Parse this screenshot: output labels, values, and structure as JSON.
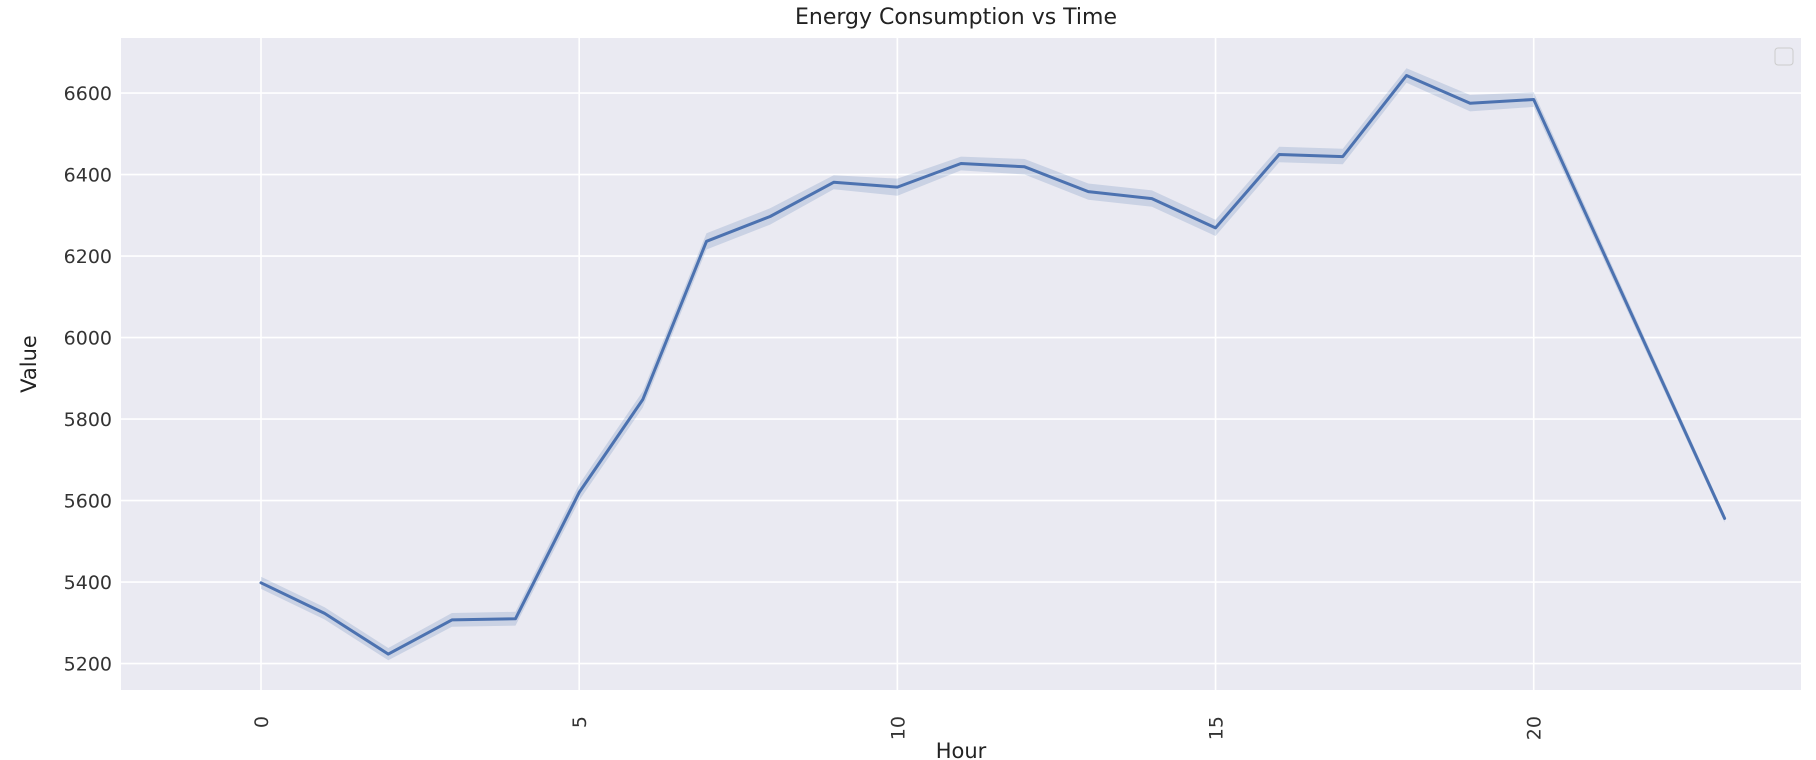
{
  "chart_data": {
    "type": "line",
    "title": "Energy Consumption vs Time",
    "xlabel": "Hour",
    "ylabel": "Value",
    "xlim": [
      -2.2,
      24.2
    ],
    "ylim": [
      5135,
      6735
    ],
    "xticks": [
      0,
      5,
      10,
      15,
      20
    ],
    "yticks": [
      5200,
      5400,
      5600,
      5800,
      6000,
      6200,
      6400,
      6600
    ],
    "grid": true,
    "legend": "top-right (empty)",
    "line_color": "#4c72b0",
    "band_color": "#4c72b0",
    "plot_background": "#eaeaf2",
    "series": [
      {
        "x": [
          0,
          1,
          2,
          3,
          4,
          5,
          6,
          7,
          8,
          9,
          10,
          11,
          12,
          13,
          14,
          15,
          16,
          17,
          18,
          19,
          20,
          23
        ],
        "values": [
          5398,
          5323,
          5223,
          5307,
          5310,
          5620,
          5848,
          6236,
          6297,
          6381,
          6369,
          6427,
          6419,
          6358,
          6341,
          6269,
          6449,
          6444,
          6643,
          6575,
          6584,
          5556
        ],
        "band_lower": [
          5383,
          5308,
          5208,
          5290,
          5293,
          5600,
          5828,
          6216,
          6277,
          6364,
          6348,
          6410,
          6400,
          6338,
          6321,
          6249,
          6430,
          6425,
          6625,
          6555,
          6566,
          5546
        ],
        "band_upper": [
          5413,
          5338,
          5238,
          5324,
          5327,
          5640,
          5868,
          6256,
          6317,
          6398,
          6390,
          6444,
          6438,
          6378,
          6361,
          6289,
          6468,
          6463,
          6661,
          6595,
          6602,
          5566
        ]
      }
    ]
  }
}
